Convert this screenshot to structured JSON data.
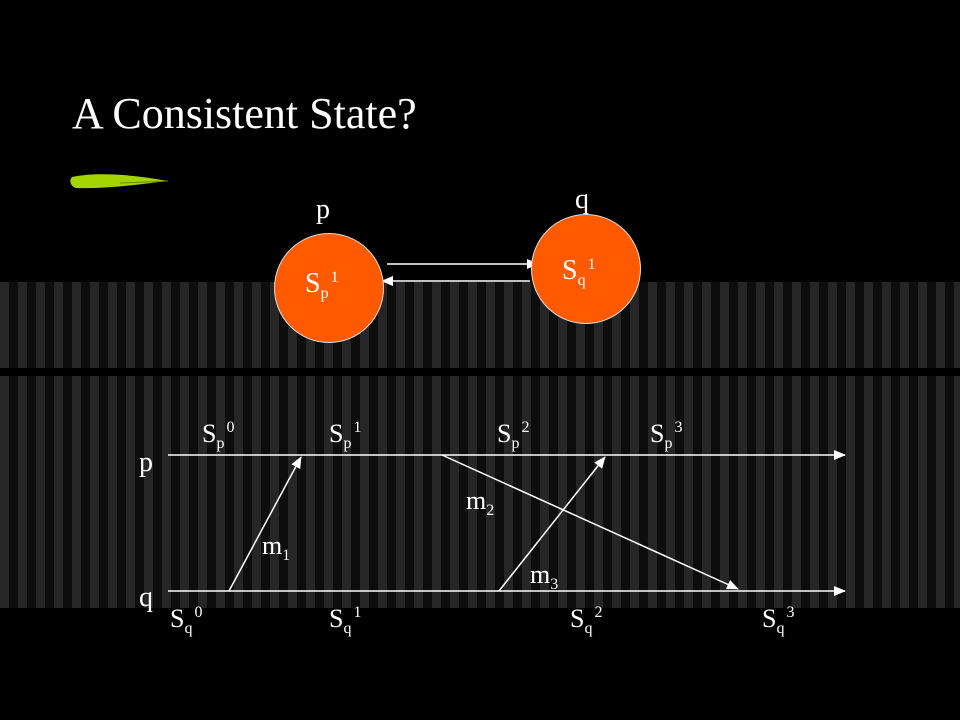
{
  "slide": {
    "title": "A Consistent State?"
  },
  "top_diagram": {
    "process_p": "p",
    "process_q": "q",
    "node_p": {
      "base": "S",
      "sub": "p",
      "sup": "1"
    },
    "node_q": {
      "base": "S",
      "sub": "q",
      "sup": "1"
    },
    "node_color": "#ff5a00"
  },
  "timeline": {
    "process_p": "p",
    "process_q": "q",
    "p_states": [
      {
        "base": "S",
        "sub": "p",
        "sup": "0"
      },
      {
        "base": "S",
        "sub": "p",
        "sup": "1"
      },
      {
        "base": "S",
        "sub": "p",
        "sup": "2"
      },
      {
        "base": "S",
        "sub": "p",
        "sup": "3"
      }
    ],
    "q_states": [
      {
        "base": "S",
        "sub": "q",
        "sup": "0"
      },
      {
        "base": "S",
        "sub": "q",
        "sup": "1"
      },
      {
        "base": "S",
        "sub": "q",
        "sup": "2"
      },
      {
        "base": "S",
        "sub": "q",
        "sup": "3"
      }
    ],
    "messages": [
      {
        "base": "m",
        "sub": "1"
      },
      {
        "base": "m",
        "sub": "2"
      },
      {
        "base": "m",
        "sub": "3"
      }
    ]
  },
  "accent_color": "#a4d400"
}
